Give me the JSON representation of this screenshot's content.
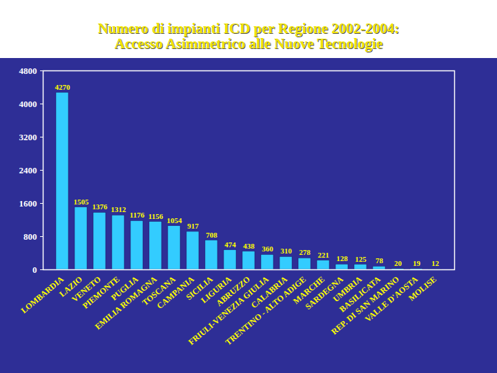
{
  "chart_data": {
    "type": "bar",
    "title": "Numero di impianti ICD per Regione 2002-2004:",
    "subtitle": "Accesso Asimmetrico alle Nuove Tecnologie",
    "categories": [
      "LOMBARDIA",
      "LAZIO",
      "VENETO",
      "PIEMONTE",
      "PUGLIA",
      "EMILIA ROMAGNA",
      "TOSCANA",
      "CAMPANIA",
      "SICILIA",
      "LIGURIA",
      "ABRUZZO",
      "FRIULI-VENEZIA GIULIA",
      "CALABRIA",
      "TRENTINO - ALTO ADIGE",
      "MARCHE",
      "SARDEGNA",
      "UMBRIA",
      "BASILICATA",
      "REP. DI SAN MARINO",
      "VALLE D'AOSTA",
      "MOLISE"
    ],
    "values": [
      4270,
      1505,
      1376,
      1312,
      1176,
      1156,
      1054,
      917,
      708,
      474,
      438,
      360,
      310,
      278,
      221,
      128,
      125,
      78,
      20,
      19,
      12
    ],
    "color": "#33ccff",
    "ylim": [
      0,
      4800
    ],
    "yticks": [
      0,
      800,
      1600,
      2400,
      3200,
      4000,
      4800
    ],
    "grid": false,
    "data_labels": true
  }
}
